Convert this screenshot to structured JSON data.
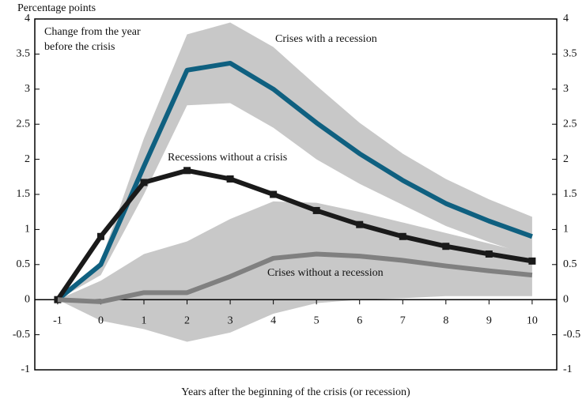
{
  "chart_data": {
    "type": "line",
    "y_label": "Percentage points",
    "annotation": [
      "Change from the year",
      "before the crisis"
    ],
    "x_label": "Years after the beginning of the crisis (or recession)",
    "x": [
      -1,
      0,
      1,
      2,
      3,
      4,
      5,
      6,
      7,
      8,
      9,
      10
    ],
    "xlim": [
      -1.53,
      10.57
    ],
    "ylim": [
      -1,
      4
    ],
    "yticks": [
      -1,
      -0.5,
      0,
      0.5,
      1,
      1.5,
      2,
      2.5,
      3,
      3.5,
      4
    ],
    "band_color": "#c8c8c8",
    "series": [
      {
        "name": "Crises with a recession",
        "color": "#0f6080",
        "values": [
          0,
          0.5,
          1.9,
          3.27,
          3.37,
          3.0,
          2.52,
          2.08,
          1.7,
          1.37,
          1.12,
          0.9
        ],
        "upper": [
          0,
          0.55,
          2.3,
          3.78,
          3.95,
          3.6,
          3.05,
          2.52,
          2.08,
          1.72,
          1.43,
          1.18
        ],
        "lower": [
          0,
          0.35,
          1.5,
          2.77,
          2.8,
          2.45,
          2.0,
          1.65,
          1.35,
          1.05,
          0.82,
          0.62
        ]
      },
      {
        "name": "Recessions without a crisis",
        "color": "#1a1a1a",
        "markers": true,
        "values": [
          0,
          0.9,
          1.67,
          1.84,
          1.72,
          1.5,
          1.27,
          1.07,
          0.9,
          0.76,
          0.65,
          0.55
        ]
      },
      {
        "name": "Crises without a recession",
        "color": "#808080",
        "values": [
          0,
          -0.03,
          0.1,
          0.1,
          0.33,
          0.59,
          0.65,
          0.62,
          0.56,
          0.48,
          0.41,
          0.35
        ],
        "upper": [
          0,
          0.27,
          0.65,
          0.83,
          1.15,
          1.4,
          1.38,
          1.25,
          1.1,
          0.95,
          0.8,
          0.65
        ],
        "lower": [
          0,
          -0.3,
          -0.42,
          -0.6,
          -0.47,
          -0.2,
          -0.05,
          0,
          0.02,
          0.05,
          0.05,
          0.05
        ]
      }
    ]
  }
}
